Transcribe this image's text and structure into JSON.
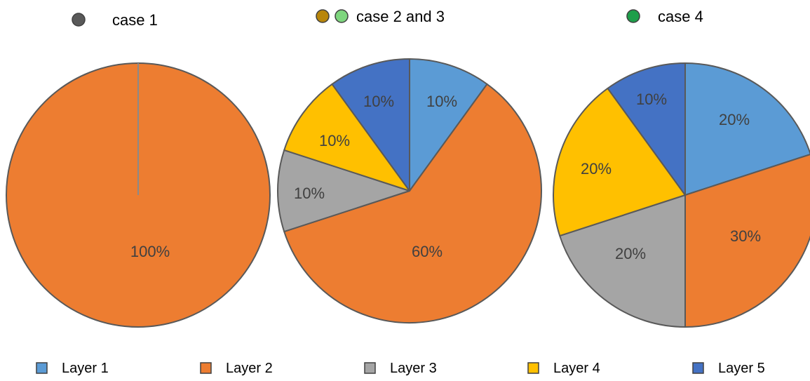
{
  "chart_data": [
    {
      "type": "pie",
      "title": "case 1",
      "marker_colors": [
        "#595959"
      ],
      "slices": [
        {
          "name": "Layer 2",
          "value": 100,
          "label": "100%",
          "color": "#ed7d31"
        }
      ]
    },
    {
      "type": "pie",
      "title": "case 2 and 3",
      "marker_colors": [
        "#b8860b",
        "#7ed67e"
      ],
      "slices": [
        {
          "name": "Layer 1",
          "value": 10,
          "label": "10%",
          "color": "#5b9bd5"
        },
        {
          "name": "Layer 2",
          "value": 60,
          "label": "60%",
          "color": "#ed7d31"
        },
        {
          "name": "Layer 3",
          "value": 10,
          "label": "10%",
          "color": "#a5a5a5"
        },
        {
          "name": "Layer 4",
          "value": 10,
          "label": "10%",
          "color": "#ffc000"
        },
        {
          "name": "Layer 5",
          "value": 10,
          "label": "10%",
          "color": "#4472c4"
        }
      ]
    },
    {
      "type": "pie",
      "title": "case 4",
      "marker_colors": [
        "#1e9e4a"
      ],
      "slices": [
        {
          "name": "Layer 1",
          "value": 20,
          "label": "20%",
          "color": "#5b9bd5"
        },
        {
          "name": "Layer 2",
          "value": 30,
          "label": "30%",
          "color": "#ed7d31"
        },
        {
          "name": "Layer 3",
          "value": 20,
          "label": "20%",
          "color": "#a5a5a5"
        },
        {
          "name": "Layer 4",
          "value": 20,
          "label": "20%",
          "color": "#ffc000"
        },
        {
          "name": "Layer 5",
          "value": 10,
          "label": "10%",
          "color": "#4472c4"
        }
      ]
    }
  ],
  "legend": {
    "placement": "bottom",
    "items": [
      {
        "label": "Layer 1",
        "color": "#5b9bd5"
      },
      {
        "label": "Layer 2",
        "color": "#ed7d31"
      },
      {
        "label": "Layer 3",
        "color": "#a5a5a5"
      },
      {
        "label": "Layer 4",
        "color": "#ffc000"
      },
      {
        "label": "Layer 5",
        "color": "#4472c4"
      }
    ]
  }
}
